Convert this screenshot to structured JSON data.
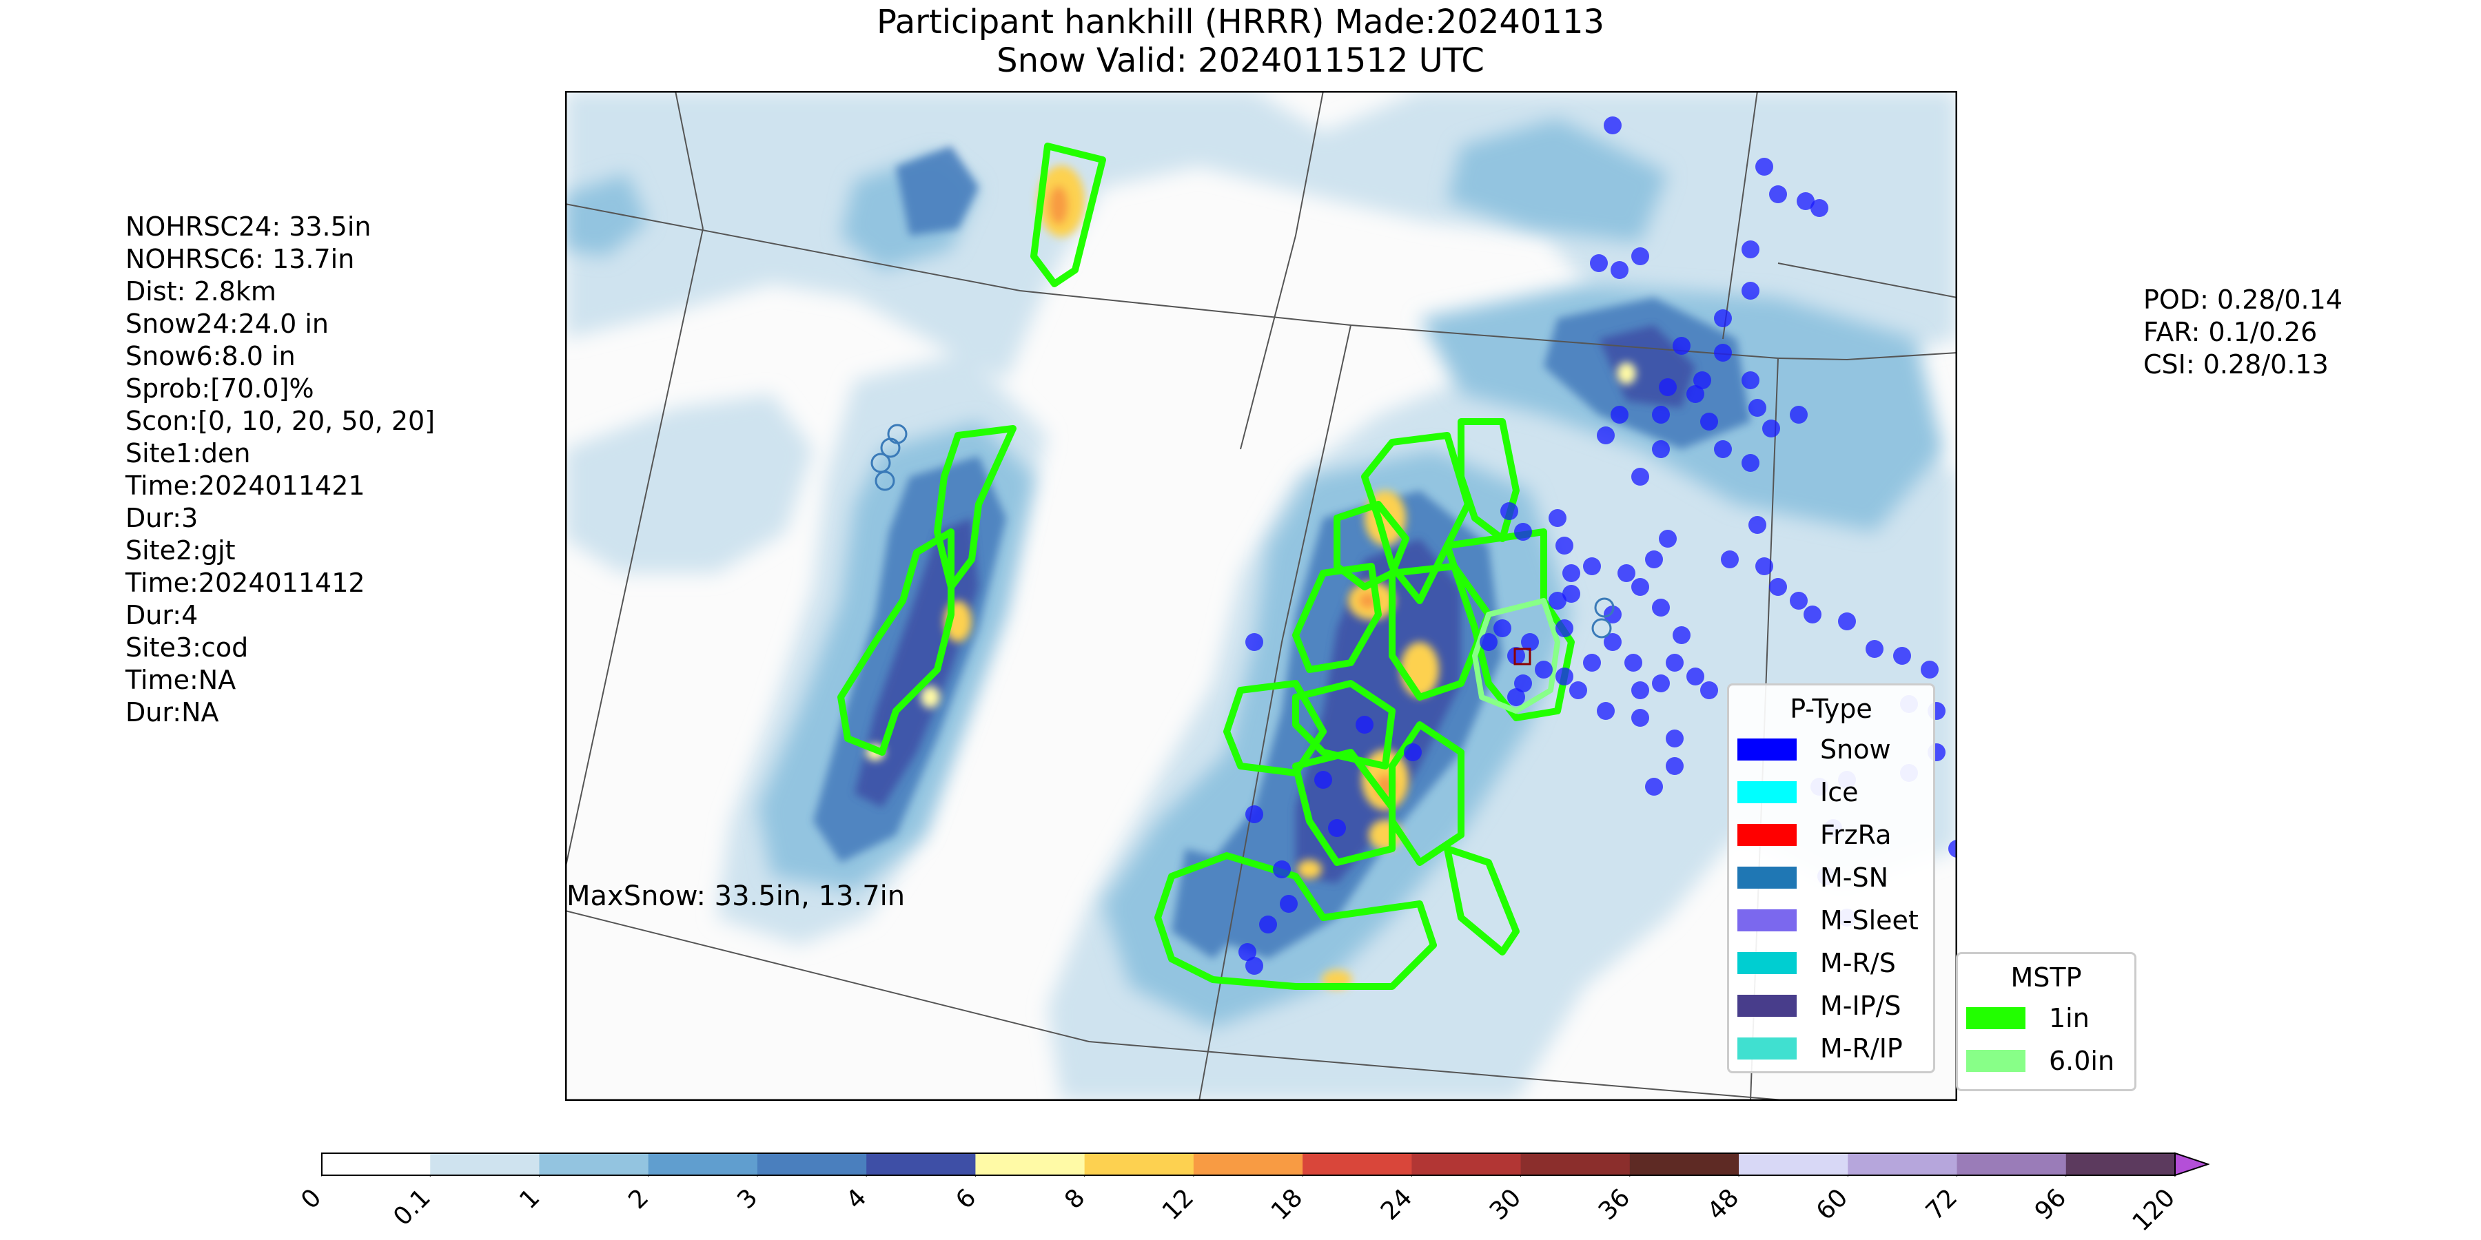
{
  "title": {
    "line1": "Participant hankhill (HRRR) Made:20240113",
    "line2": "Snow Valid: 2024011512 UTC"
  },
  "left_stats": [
    "NOHRSC24: 33.5in",
    "NOHRSC6: 13.7in",
    "Dist: 2.8km",
    "Snow24:24.0 in",
    "Snow6:8.0 in",
    "Sprob:[70.0]%",
    "Scon:[0, 10, 20, 50, 20]",
    "Site1:den",
    "Time:2024011421",
    "Dur:3",
    "Site2:gjt",
    "Time:2024011412",
    "Dur:4",
    "Site3:cod",
    "Time:NA",
    "Dur:NA"
  ],
  "right_stats": [
    "POD: 0.28/0.14",
    "FAR: 0.1/0.26",
    "CSI: 0.28/0.13"
  ],
  "max_snow_label": "MaxSnow: 33.5in, 13.7in",
  "ptype_legend": {
    "title": "P-Type",
    "items": [
      {
        "label": "Snow",
        "color": "#0000ff"
      },
      {
        "label": "Ice",
        "color": "#00ffff"
      },
      {
        "label": "FrzRa",
        "color": "#ff0000"
      },
      {
        "label": "M-SN",
        "color": "#1f77b4"
      },
      {
        "label": "M-Sleet",
        "color": "#7b68ee"
      },
      {
        "label": "M-R/S",
        "color": "#00ced1"
      },
      {
        "label": "M-IP/S",
        "color": "#483d8b"
      },
      {
        "label": "M-R/IP",
        "color": "#40e0d0"
      }
    ]
  },
  "mstp_legend": {
    "title": "MSTP",
    "items": [
      {
        "label": "1in",
        "color": "#22ff00"
      },
      {
        "label": "6.0in",
        "color": "#88ff88"
      }
    ]
  },
  "chart_data": {
    "type": "heatmap",
    "title": "Participant hankhill (HRRR) Made:20240113 Snow Valid: 2024011512 UTC",
    "colorbar": {
      "ticks": [
        "0",
        "0.1",
        "1",
        "2",
        "3",
        "4",
        "6",
        "8",
        "12",
        "18",
        "24",
        "30",
        "36",
        "48",
        "60",
        "72",
        "96",
        "120"
      ],
      "colors": [
        "#ffffff",
        "#cfe3ef",
        "#93c4e0",
        "#609ecf",
        "#4a7fbe",
        "#3e4fa6",
        "#fffaa6",
        "#fdd150",
        "#f89b43",
        "#d9463a",
        "#b23634",
        "#8b2e2c",
        "#5e2a24",
        "#d8d8f6",
        "#b6a6dc",
        "#9a7cb8",
        "#5c3a5e"
      ],
      "extend_color": "#b44fd8"
    },
    "snow_obs_markers": "blue filled circles (Snow p-type reports)",
    "contours": [
      "1in (green)",
      "6.0in (light green)"
    ]
  }
}
